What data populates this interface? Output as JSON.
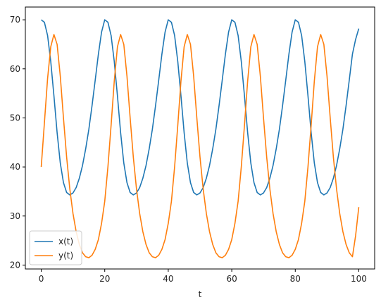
{
  "chart_data": {
    "type": "line",
    "title": "",
    "xlabel": "t",
    "ylabel": "",
    "xlim": [
      -5,
      105
    ],
    "ylim": [
      19.2,
      72.6
    ],
    "xticks": [
      0,
      20,
      40,
      60,
      80,
      100
    ],
    "yticks": [
      20,
      30,
      40,
      50,
      60,
      70
    ],
    "grid": false,
    "legend": "lower-left",
    "series": [
      {
        "name": "x(t)",
        "color": "#1f77b4",
        "points": [
          [
            0,
            70
          ],
          [
            1,
            69.5
          ],
          [
            2,
            66.8
          ],
          [
            3,
            61.5
          ],
          [
            4,
            54.5
          ],
          [
            5,
            47
          ],
          [
            6,
            40.8
          ],
          [
            7,
            36.8
          ],
          [
            8,
            34.8
          ],
          [
            9,
            34.3
          ],
          [
            10,
            34.7
          ],
          [
            11,
            35.8
          ],
          [
            12,
            37.7
          ],
          [
            13,
            40.3
          ],
          [
            14,
            43.7
          ],
          [
            15,
            47.7
          ],
          [
            16,
            52.5
          ],
          [
            17,
            57.7
          ],
          [
            18,
            63
          ],
          [
            19,
            67.5
          ],
          [
            20,
            70
          ],
          [
            21,
            69.5
          ],
          [
            22,
            66.8
          ],
          [
            23,
            61.5
          ],
          [
            24,
            54.5
          ],
          [
            25,
            47
          ],
          [
            26,
            40.8
          ],
          [
            27,
            36.8
          ],
          [
            28,
            34.8
          ],
          [
            29,
            34.3
          ],
          [
            30,
            34.7
          ],
          [
            31,
            35.8
          ],
          [
            32,
            37.7
          ],
          [
            33,
            40.3
          ],
          [
            34,
            43.7
          ],
          [
            35,
            47.7
          ],
          [
            36,
            52.5
          ],
          [
            37,
            57.7
          ],
          [
            38,
            63
          ],
          [
            39,
            67.5
          ],
          [
            40,
            70
          ],
          [
            41,
            69.5
          ],
          [
            42,
            66.8
          ],
          [
            43,
            61.5
          ],
          [
            44,
            54.5
          ],
          [
            45,
            47
          ],
          [
            46,
            40.8
          ],
          [
            47,
            36.8
          ],
          [
            48,
            34.8
          ],
          [
            49,
            34.3
          ],
          [
            50,
            34.7
          ],
          [
            51,
            35.8
          ],
          [
            52,
            37.7
          ],
          [
            53,
            40.3
          ],
          [
            54,
            43.7
          ],
          [
            55,
            47.7
          ],
          [
            56,
            52.5
          ],
          [
            57,
            57.7
          ],
          [
            58,
            63
          ],
          [
            59,
            67.5
          ],
          [
            60,
            70
          ],
          [
            61,
            69.5
          ],
          [
            62,
            66.8
          ],
          [
            63,
            61.5
          ],
          [
            64,
            54.5
          ],
          [
            65,
            47
          ],
          [
            66,
            40.8
          ],
          [
            67,
            36.8
          ],
          [
            68,
            34.8
          ],
          [
            69,
            34.3
          ],
          [
            70,
            34.7
          ],
          [
            71,
            35.8
          ],
          [
            72,
            37.7
          ],
          [
            73,
            40.3
          ],
          [
            74,
            43.7
          ],
          [
            75,
            47.7
          ],
          [
            76,
            52.5
          ],
          [
            77,
            57.7
          ],
          [
            78,
            63
          ],
          [
            79,
            67.5
          ],
          [
            80,
            70
          ],
          [
            81,
            69.5
          ],
          [
            82,
            66.8
          ],
          [
            83,
            61.5
          ],
          [
            84,
            54.5
          ],
          [
            85,
            47
          ],
          [
            86,
            40.8
          ],
          [
            87,
            36.8
          ],
          [
            88,
            34.8
          ],
          [
            89,
            34.3
          ],
          [
            90,
            34.7
          ],
          [
            91,
            35.8
          ],
          [
            92,
            37.7
          ],
          [
            93,
            40.3
          ],
          [
            94,
            43.7
          ],
          [
            95,
            47.7
          ],
          [
            96,
            52.5
          ],
          [
            97,
            57.7
          ],
          [
            98,
            63
          ],
          [
            99,
            66
          ],
          [
            100,
            68.2
          ]
        ]
      },
      {
        "name": "y(t)",
        "color": "#ff7f0e",
        "points": [
          [
            0,
            40
          ],
          [
            1,
            49
          ],
          [
            2,
            58
          ],
          [
            3,
            64.5
          ],
          [
            4,
            67
          ],
          [
            5,
            65
          ],
          [
            6,
            58.5
          ],
          [
            7,
            50
          ],
          [
            8,
            42
          ],
          [
            9,
            35.5
          ],
          [
            10,
            30.5
          ],
          [
            11,
            26.8
          ],
          [
            12,
            24.2
          ],
          [
            13,
            22.5
          ],
          [
            14,
            21.7
          ],
          [
            15,
            21.5
          ],
          [
            16,
            22
          ],
          [
            17,
            23.2
          ],
          [
            18,
            25.2
          ],
          [
            19,
            28.5
          ],
          [
            20,
            33
          ],
          [
            21,
            40
          ],
          [
            22,
            48.5
          ],
          [
            23,
            57.5
          ],
          [
            24,
            64.5
          ],
          [
            25,
            67
          ],
          [
            26,
            65
          ],
          [
            27,
            58.5
          ],
          [
            28,
            50
          ],
          [
            29,
            42
          ],
          [
            30,
            35.5
          ],
          [
            31,
            30.5
          ],
          [
            32,
            26.8
          ],
          [
            33,
            24.2
          ],
          [
            34,
            22.5
          ],
          [
            35,
            21.7
          ],
          [
            36,
            21.5
          ],
          [
            37,
            22
          ],
          [
            38,
            23.2
          ],
          [
            39,
            25.2
          ],
          [
            40,
            28.5
          ],
          [
            41,
            33
          ],
          [
            42,
            40
          ],
          [
            43,
            48.5
          ],
          [
            44,
            57.5
          ],
          [
            45,
            64.5
          ],
          [
            46,
            67
          ],
          [
            47,
            65
          ],
          [
            48,
            58.5
          ],
          [
            49,
            50
          ],
          [
            50,
            42
          ],
          [
            51,
            35.5
          ],
          [
            52,
            30.5
          ],
          [
            53,
            26.8
          ],
          [
            54,
            24.2
          ],
          [
            55,
            22.5
          ],
          [
            56,
            21.7
          ],
          [
            57,
            21.5
          ],
          [
            58,
            22
          ],
          [
            59,
            23.2
          ],
          [
            60,
            25.2
          ],
          [
            61,
            28.5
          ],
          [
            62,
            33
          ],
          [
            63,
            40
          ],
          [
            64,
            48.5
          ],
          [
            65,
            57.5
          ],
          [
            66,
            64.5
          ],
          [
            67,
            67
          ],
          [
            68,
            65
          ],
          [
            69,
            58.5
          ],
          [
            70,
            50
          ],
          [
            71,
            42
          ],
          [
            72,
            35.5
          ],
          [
            73,
            30.5
          ],
          [
            74,
            26.8
          ],
          [
            75,
            24.2
          ],
          [
            76,
            22.5
          ],
          [
            77,
            21.7
          ],
          [
            78,
            21.5
          ],
          [
            79,
            22
          ],
          [
            80,
            23.2
          ],
          [
            81,
            25.2
          ],
          [
            82,
            28.5
          ],
          [
            83,
            33
          ],
          [
            84,
            40
          ],
          [
            85,
            48.5
          ],
          [
            86,
            57.5
          ],
          [
            87,
            64.5
          ],
          [
            88,
            67
          ],
          [
            89,
            65
          ],
          [
            90,
            58.5
          ],
          [
            91,
            50
          ],
          [
            92,
            42
          ],
          [
            93,
            35.5
          ],
          [
            94,
            30.5
          ],
          [
            95,
            26.8
          ],
          [
            96,
            24.2
          ],
          [
            97,
            22.5
          ],
          [
            98,
            21.7
          ],
          [
            99,
            26
          ],
          [
            100,
            31.8
          ]
        ]
      }
    ]
  }
}
